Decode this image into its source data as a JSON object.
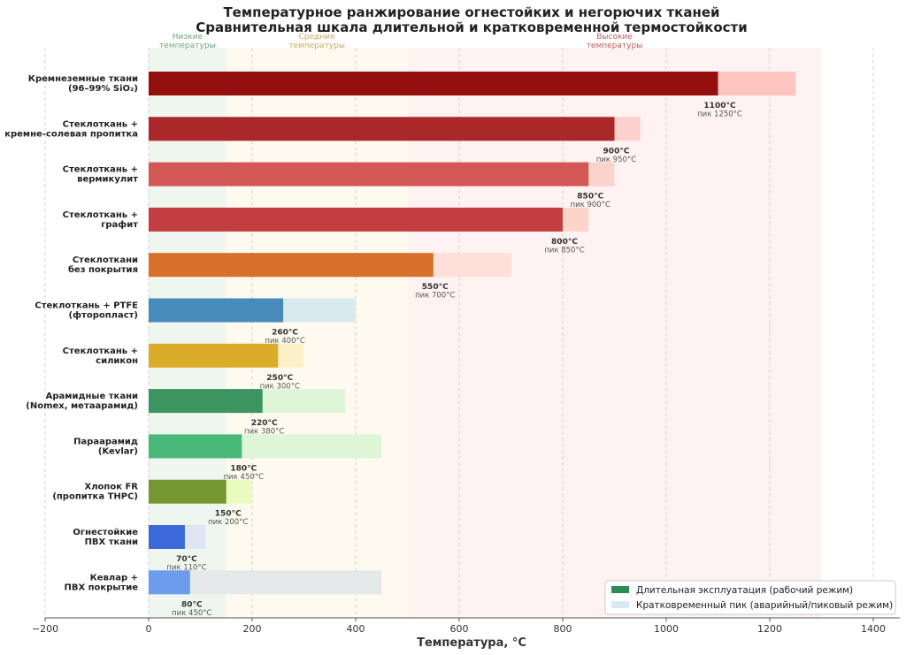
{
  "chart_data": {
    "type": "bar",
    "orientation": "horizontal",
    "title": "Температурное ранжирование огнестойких и негорючих тканей",
    "subtitle": "Сравнительная шкала длительной и кратковременной термостойкости",
    "xlabel": "Температура, °C",
    "xlim": [
      -200,
      1450
    ],
    "xticks": [
      -200,
      0,
      200,
      400,
      600,
      800,
      1000,
      1200,
      1400
    ],
    "xtick_labels": [
      "−200",
      "0",
      "200",
      "400",
      "600",
      "800",
      "1000",
      "1200",
      "1400"
    ],
    "grid": "vertical dashed",
    "zones": [
      {
        "label_lines": [
          "Низкие",
          "температуры"
        ],
        "from": 0,
        "to": 150,
        "color": "#e9f3ea",
        "text_color": "#6aa57a"
      },
      {
        "label_lines": [
          "Средние",
          "температуры"
        ],
        "from": 150,
        "to": 500,
        "color": "#fdf8ea",
        "text_color": "#c8a95a"
      },
      {
        "label_lines": [
          "Высокие",
          "температуры"
        ],
        "from": 500,
        "to": 1300,
        "color": "#fdeeee",
        "text_color": "#c0595a"
      }
    ],
    "categories": [
      {
        "lines": [
          "Кремнеземные ткани",
          "(96–99% SiO₂)"
        ],
        "continuous": 1100,
        "peak": 1250,
        "color": "#8b0000",
        "peak_color": "#ffc4c0",
        "value_label": "1100°C",
        "peak_label": "пик 1250°C"
      },
      {
        "lines": [
          "Стеклоткань +",
          "кремне-солевая пропитка"
        ],
        "continuous": 900,
        "peak": 950,
        "color": "#a3191c",
        "peak_color": "#fcd0cc",
        "value_label": "900°C",
        "peak_label": "пик 950°C"
      },
      {
        "lines": [
          "Стеклоткань +",
          "вермикулит"
        ],
        "continuous": 850,
        "peak": 900,
        "color": "#cf4d4b",
        "peak_color": "#f9d3cc",
        "value_label": "850°C",
        "peak_label": "пик 900°C"
      },
      {
        "lines": [
          "Стеклоткань +",
          "графит"
        ],
        "continuous": 800,
        "peak": 850,
        "color": "#bd3134",
        "peak_color": "#fbd5c8",
        "value_label": "800°C",
        "peak_label": "пик 850°C"
      },
      {
        "lines": [
          "Стеклоткани",
          "без покрытия"
        ],
        "continuous": 550,
        "peak": 700,
        "color": "#d4661a",
        "peak_color": "#fde0d8",
        "value_label": "550°C",
        "peak_label": "пик 700°C"
      },
      {
        "lines": [
          "Стеклоткань + PTFE",
          "(фторопласт)"
        ],
        "continuous": 260,
        "peak": 400,
        "color": "#3b82b6",
        "peak_color": "#d8eaf0",
        "value_label": "260°C",
        "peak_label": "пик 400°C"
      },
      {
        "lines": [
          "Стеклоткань +",
          "силикон"
        ],
        "continuous": 250,
        "peak": 300,
        "color": "#d8a61c",
        "peak_color": "#fbf0c8",
        "value_label": "250°C",
        "peak_label": "пик 300°C"
      },
      {
        "lines": [
          "Арамидные ткани",
          "(Nomex, метаарамид)"
        ],
        "continuous": 220,
        "peak": 380,
        "color": "#2e8b57",
        "peak_color": "#def5d8",
        "value_label": "220°C",
        "peak_label": "пик 380°C"
      },
      {
        "lines": [
          "Параарамид",
          "(Kevlar)"
        ],
        "continuous": 180,
        "peak": 450,
        "color": "#3cb371",
        "peak_color": "#def5d8",
        "value_label": "180°C",
        "peak_label": "пик 450°C"
      },
      {
        "lines": [
          "Хлопок FR",
          "(пропитка THPC)"
        ],
        "continuous": 150,
        "peak": 200,
        "color": "#6b8e23",
        "peak_color": "#eafbc0",
        "value_label": "150°C",
        "peak_label": "пик 200°C"
      },
      {
        "lines": [
          "Огнестойкие",
          "ПВХ ткани"
        ],
        "continuous": 70,
        "peak": 110,
        "color": "#2f5fd8",
        "peak_color": "#dde6f2",
        "value_label": "70°C",
        "peak_label": "пик 110°C"
      },
      {
        "lines": [
          "Кевлар +",
          "ПВХ покрытие"
        ],
        "continuous": 80,
        "peak": 450,
        "color": "#6495ed",
        "peak_color": "#e6e9ea",
        "value_label": "80°C",
        "peak_label": "пик 450°C"
      }
    ],
    "legend": {
      "placement": "bottom-right",
      "entries": [
        {
          "label": "Длительная эксплуатация (рабочий режим)",
          "color": "#2e8b57"
        },
        {
          "label": "Кратковременный пик (аварийный/пиковый режим)",
          "color": "#d8eaf0"
        }
      ]
    }
  }
}
